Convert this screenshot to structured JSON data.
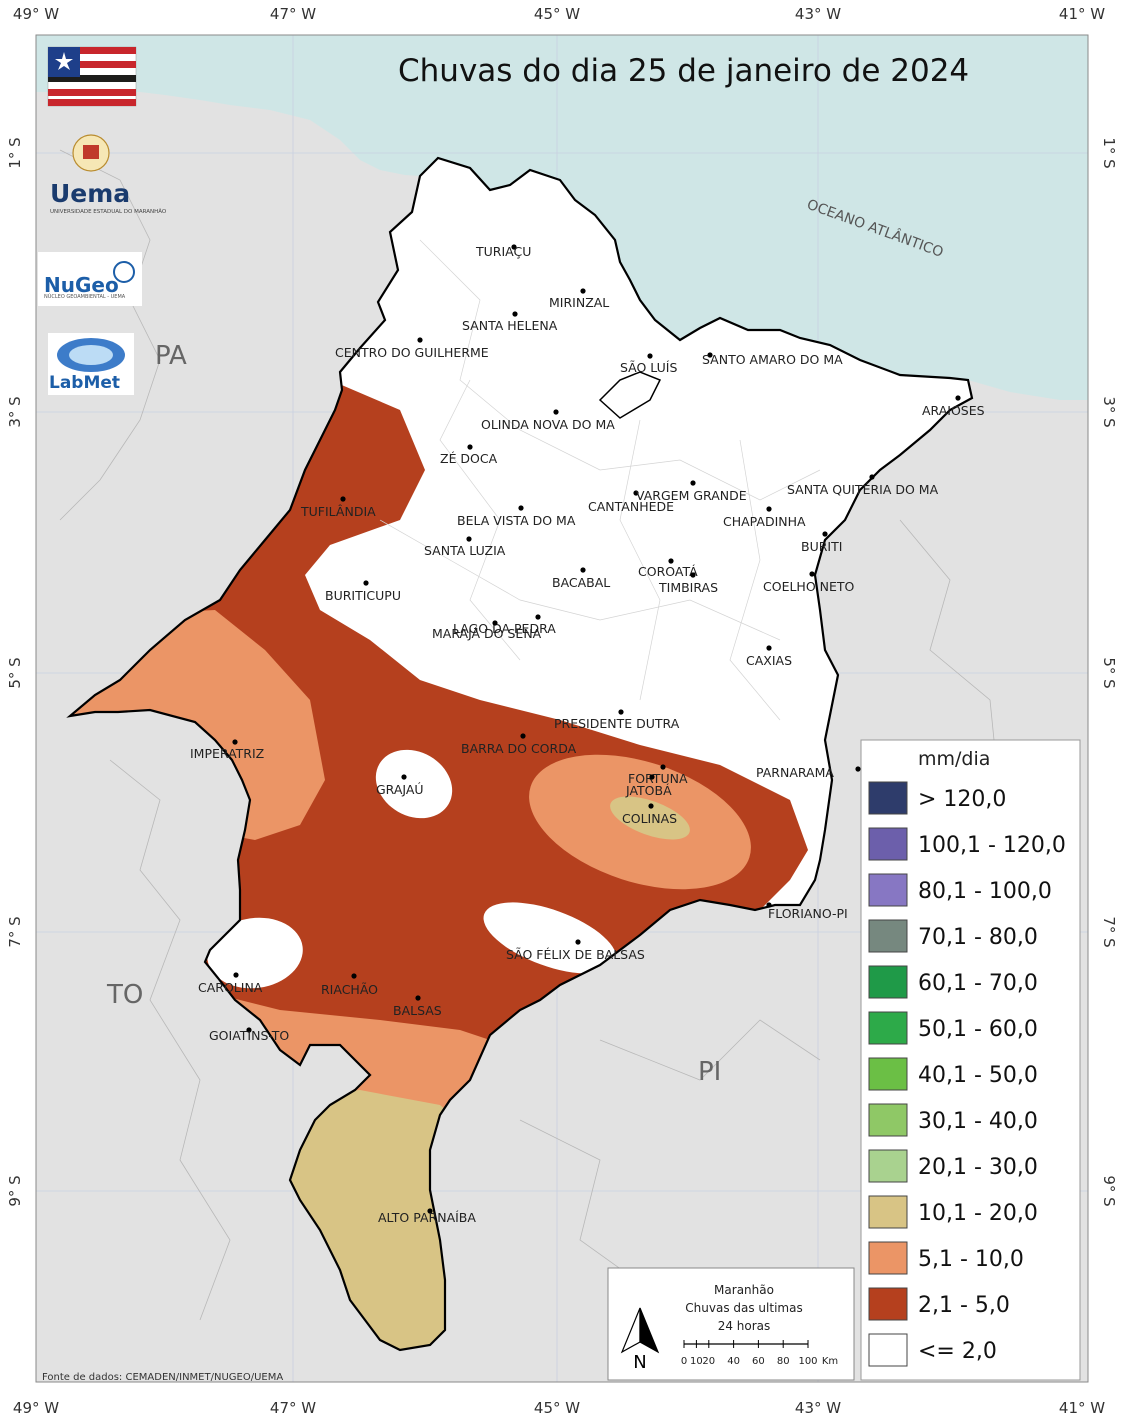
{
  "title": "Chuvas do dia 25 de janeiro de 2024",
  "colors": {
    "ocean": "#cfe6e6",
    "land_outside": "#e2e2e2",
    "band_2_5": "#b5401e",
    "band_5_10": "#eb9566",
    "band_10_20": "#d8c485",
    "band_le2": "#ffffff"
  },
  "axes": {
    "top_lon": [
      "49° W",
      "47° W",
      "45° W",
      "43° W",
      "41° W"
    ],
    "bottom_lon": [
      "49° W",
      "47° W",
      "45° W",
      "43° W",
      "41° W"
    ],
    "left_lat": [
      "1° S",
      "3° S",
      "5° S",
      "7° S",
      "9° S"
    ],
    "right_lat": [
      "1° S",
      "3° S",
      "5° S",
      "7° S",
      "9° S"
    ]
  },
  "states": {
    "pa": "PA",
    "to": "TO",
    "pi": "PI"
  },
  "ocean_label": "OCEANO ATLÂNTICO",
  "cities": [
    {
      "name": "TURIAÇU"
    },
    {
      "name": "MIRINZAL"
    },
    {
      "name": "SANTA HELENA"
    },
    {
      "name": "CENTRO DO GUILHERME"
    },
    {
      "name": "SÃO LUÍS"
    },
    {
      "name": "SANTO AMARO DO MA"
    },
    {
      "name": "ARAIOSES"
    },
    {
      "name": "OLINDA NOVA DO MA"
    },
    {
      "name": "ZÉ DOCA"
    },
    {
      "name": "VARGEM GRANDE"
    },
    {
      "name": "CANTANHEDE"
    },
    {
      "name": "SANTA QUITÉRIA DO MA"
    },
    {
      "name": "TUFILÂNDIA"
    },
    {
      "name": "BELA VISTA DO MA"
    },
    {
      "name": "CHAPADINHA"
    },
    {
      "name": "BURITI"
    },
    {
      "name": "SANTA LUZIA"
    },
    {
      "name": "COROATÁ"
    },
    {
      "name": "TIMBIRAS"
    },
    {
      "name": "BACABAL"
    },
    {
      "name": "BURITICUPU"
    },
    {
      "name": "COELHO NETO"
    },
    {
      "name": "LAGO DA PEDRA"
    },
    {
      "name": "MARAJÁ DO SENA"
    },
    {
      "name": "CAXIAS"
    },
    {
      "name": "PRESIDENTE DUTRA"
    },
    {
      "name": "BARRA DO CORDA"
    },
    {
      "name": "IMPERATRIZ"
    },
    {
      "name": "FORTUNA"
    },
    {
      "name": "PARNARAMA"
    },
    {
      "name": "GRAJAÚ"
    },
    {
      "name": "JATOBÁ"
    },
    {
      "name": "COLINAS"
    },
    {
      "name": "FLORIANO-PI"
    },
    {
      "name": "SÃO FÉLIX DE BALSAS"
    },
    {
      "name": "CAROLINA"
    },
    {
      "name": "RIACHÃO"
    },
    {
      "name": "BALSAS"
    },
    {
      "name": "GOIATINS-TO"
    },
    {
      "name": "ALTO PARNAÍBA"
    }
  ],
  "legend": {
    "title": "mm/dia",
    "items": [
      {
        "label": "> 120,0",
        "color": "#2e3c6b"
      },
      {
        "label": "100,1 - 120,0",
        "color": "#6c5fab"
      },
      {
        "label": "80,1 - 100,0",
        "color": "#8777c3"
      },
      {
        "label": "70,1 - 80,0",
        "color": "#76887f"
      },
      {
        "label": "60,1 - 70,0",
        "color": "#1f9a48"
      },
      {
        "label": "50,1 - 60,0",
        "color": "#2daa49"
      },
      {
        "label": "40,1 - 50,0",
        "color": "#6bbf45"
      },
      {
        "label": "30,1 - 40,0",
        "color": "#8fc866"
      },
      {
        "label": "20,1 - 30,0",
        "color": "#a9d28f"
      },
      {
        "label": "10,1 - 20,0",
        "color": "#d8c485"
      },
      {
        "label": "5,1 - 10,0",
        "color": "#eb9566"
      },
      {
        "label": "2,1 - 5,0",
        "color": "#b5401e"
      },
      {
        "label": "<= 2,0",
        "color": "#ffffff"
      }
    ]
  },
  "inset": {
    "line1": "Maranhão",
    "line2": "Chuvas das ultimas",
    "line3": "24 horas",
    "north": "N",
    "scale": [
      "0",
      "10",
      "20",
      "40",
      "60",
      "80",
      "100",
      "Km"
    ]
  },
  "source": "Fonte de dados: CEMADEN/INMET/NUGEO/UEMA",
  "logos": {
    "uema": "Uema",
    "uema_sub": "UNIVERSIDADE ESTADUAL DO MARANHÃO",
    "nugeo": "NuGeo",
    "nugeo_sub": "NÚCLEO GEOAMBIENTAL - UEMA",
    "labmet": "LabMet"
  }
}
